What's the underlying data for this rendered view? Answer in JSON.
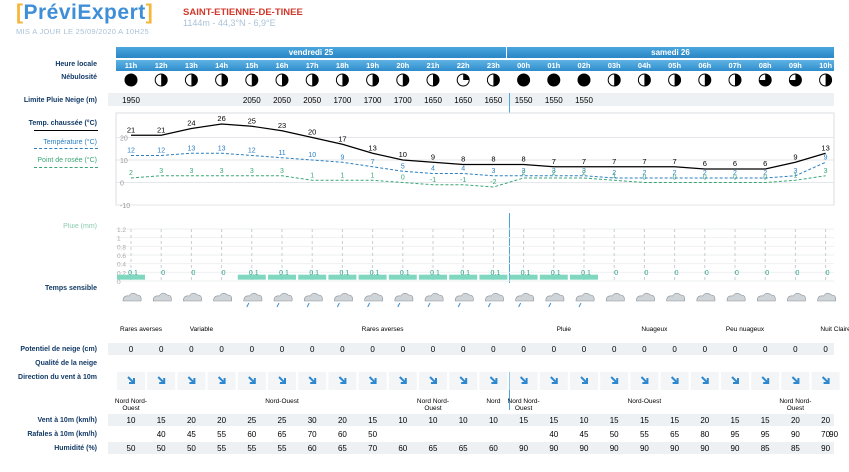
{
  "header": {
    "logo_text": "PréviExpert",
    "updated": "MIS A JOUR LE 25/09/2020 A 10H25",
    "station": "SAINT-ETIENNE-DE-TINEE",
    "coords": "1144m - 44,3°N - 6,9°E"
  },
  "days": [
    {
      "label": "vendredi 25"
    },
    {
      "label": "samedi 26"
    }
  ],
  "hours": [
    "11h",
    "12h",
    "13h",
    "14h",
    "15h",
    "16h",
    "17h",
    "18h",
    "19h",
    "20h",
    "21h",
    "22h",
    "23h",
    "00h",
    "01h",
    "02h",
    "03h",
    "04h",
    "05h",
    "06h",
    "07h",
    "08h",
    "09h",
    "10h"
  ],
  "labels": {
    "heure_locale": "Heure locale",
    "nebulosite": "Nébulosité",
    "limite_pluie_neige": "Limite Pluie Neige (m)",
    "temp_chaussee": "Temp. chaussée (°C)",
    "temperature": "Température (°C)",
    "point_rosee": "Point de rosée (°C)",
    "pluie": "Pluie (mm)",
    "temps_sensible": "Temps sensible",
    "potentiel_neige": "Potentiel de neige (cm)",
    "qualite_neige": "Qualité de la neige",
    "direction_vent": "Direction du vent à 10m",
    "vent": "Vent à 10m (km/h)",
    "rafales": "Rafales à 10m (km/h)",
    "humidite": "Humidité (%)"
  },
  "cloud_cover_quarters": [
    4,
    2,
    2,
    2,
    2,
    2,
    2,
    2,
    2,
    2,
    2,
    1,
    2,
    4,
    4,
    4,
    2,
    2,
    2,
    2,
    2,
    3,
    3,
    2
  ],
  "snow_limit": [
    "1950",
    "",
    "",
    "",
    "2050",
    "2050",
    "2050",
    "1700",
    "1700",
    "1700",
    "1650",
    "1650",
    "1650",
    "1550",
    "1550",
    "1550",
    "",
    "",
    "",
    "",
    "",
    "",
    "",
    ""
  ],
  "chart_data": [
    {
      "type": "line",
      "title": "",
      "x": [
        "11h",
        "12h",
        "13h",
        "14h",
        "15h",
        "16h",
        "17h",
        "18h",
        "19h",
        "20h",
        "21h",
        "22h",
        "23h",
        "00h",
        "01h",
        "02h",
        "03h",
        "04h",
        "05h",
        "06h",
        "07h",
        "08h",
        "09h",
        "10h"
      ],
      "ylim": [
        -10,
        30
      ],
      "y_ticks": [
        "20",
        "10",
        "0",
        "-10"
      ],
      "grid": true,
      "series": [
        {
          "name": "Temp. chaussée (°C)",
          "color": "#000000",
          "values": [
            21,
            21,
            24,
            26,
            25,
            23,
            20,
            17,
            13,
            10,
            9,
            8,
            8,
            8,
            7,
            7,
            7,
            7,
            7,
            6,
            6,
            6,
            9,
            13
          ]
        },
        {
          "name": "Température (°C)",
          "color": "#2b7fc0",
          "values": [
            12,
            12,
            13,
            13,
            12,
            11,
            10,
            9,
            7,
            5,
            4,
            4,
            3,
            3,
            3,
            3,
            2,
            2,
            2,
            2,
            2,
            2,
            3,
            9
          ]
        },
        {
          "name": "Point de rosée (°C)",
          "color": "#3aa776",
          "values": [
            2,
            3,
            3,
            3,
            3,
            3,
            1,
            1,
            1,
            0,
            -1,
            -1,
            -2,
            2,
            2,
            2,
            1,
            0,
            0,
            0,
            0,
            0,
            1,
            3
          ]
        }
      ]
    },
    {
      "type": "bar",
      "title": "",
      "ylabel": "Pluie (mm)",
      "x": [
        "11h",
        "12h",
        "13h",
        "14h",
        "15h",
        "16h",
        "17h",
        "18h",
        "19h",
        "20h",
        "21h",
        "22h",
        "23h",
        "00h",
        "01h",
        "02h",
        "03h",
        "04h",
        "05h",
        "06h",
        "07h",
        "08h",
        "09h",
        "10h"
      ],
      "ylim": [
        0,
        1.2
      ],
      "y_ticks": [
        "1.2",
        "1",
        "0.8",
        "0.6",
        "0.4",
        "0.2",
        "0"
      ],
      "values": [
        0.1,
        0,
        0,
        0,
        0.1,
        0.1,
        0.1,
        0.1,
        0.1,
        0.1,
        0.1,
        0.1,
        0.1,
        0.1,
        0.1,
        0.1,
        0,
        0,
        0,
        0,
        0,
        0,
        0,
        0
      ],
      "value_labels": [
        "0.1",
        "0",
        "0",
        "0",
        "0.1",
        "0.1",
        "0.1",
        "0.1",
        "0.1",
        "0.1",
        "0.1",
        "0.1",
        "0.1",
        "0.1",
        "0.1",
        "0.1",
        "0",
        "0",
        "0",
        "0",
        "0",
        "0",
        "0",
        "0"
      ]
    }
  ],
  "temps_sensible_labels": [
    {
      "text": "Rares averses",
      "col": 0
    },
    {
      "text": "Variable",
      "col": 2
    },
    {
      "text": "Rares averses",
      "col": 8
    },
    {
      "text": "Pluie",
      "col": 14
    },
    {
      "text": "Nuageux",
      "col": 17
    },
    {
      "text": "Peu nuageux",
      "col": 20
    },
    {
      "text": "Nuit Claire",
      "col": 23
    }
  ],
  "snow_potential": [
    "0",
    "0",
    "0",
    "0",
    "0",
    "0",
    "0",
    "0",
    "0",
    "0",
    "0",
    "0",
    "0",
    "0",
    "0",
    "0",
    "0",
    "0",
    "0",
    "0",
    "0",
    "0",
    "0",
    "0"
  ],
  "wind_dir_labels": [
    {
      "text": "Nord Nord-Ouest",
      "col": 0
    },
    {
      "text": "Nord-Ouest",
      "col": 5
    },
    {
      "text": "Nord Nord-Ouest",
      "col": 10
    },
    {
      "text": "Nord",
      "col": 12
    },
    {
      "text": "Nord Nord-Ouest",
      "col": 13
    },
    {
      "text": "Nord-Ouest",
      "col": 17
    },
    {
      "text": "Nord Nord-Ouest",
      "col": 22
    }
  ],
  "wind": [
    "10",
    "15",
    "20",
    "20",
    "25",
    "25",
    "30",
    "20",
    "15",
    "10",
    "10",
    "10",
    "10",
    "15",
    "15",
    "10",
    "15",
    "15",
    "15",
    "20",
    "15",
    "15",
    "20",
    "20"
  ],
  "gusts": [
    "",
    "40",
    "45",
    "55",
    "60",
    "65",
    "70",
    "60",
    "50",
    "",
    "",
    "",
    "",
    "",
    "40",
    "45",
    "50",
    "55",
    "65",
    "80",
    "95",
    "95",
    "90",
    "70"
  ],
  "gusts_extra": [
    "",
    "",
    "",
    "",
    "",
    "",
    "",
    "",
    "",
    "",
    "",
    "",
    "",
    "",
    "",
    "",
    "",
    "",
    "",
    "",
    "",
    "",
    "",
    "90"
  ],
  "humidity": [
    "50",
    "50",
    "50",
    "55",
    "55",
    "55",
    "60",
    "65",
    "70",
    "60",
    "65",
    "65",
    "60",
    "90",
    "90",
    "90",
    "90",
    "90",
    "90",
    "90",
    "90",
    "85",
    "85",
    "90"
  ]
}
